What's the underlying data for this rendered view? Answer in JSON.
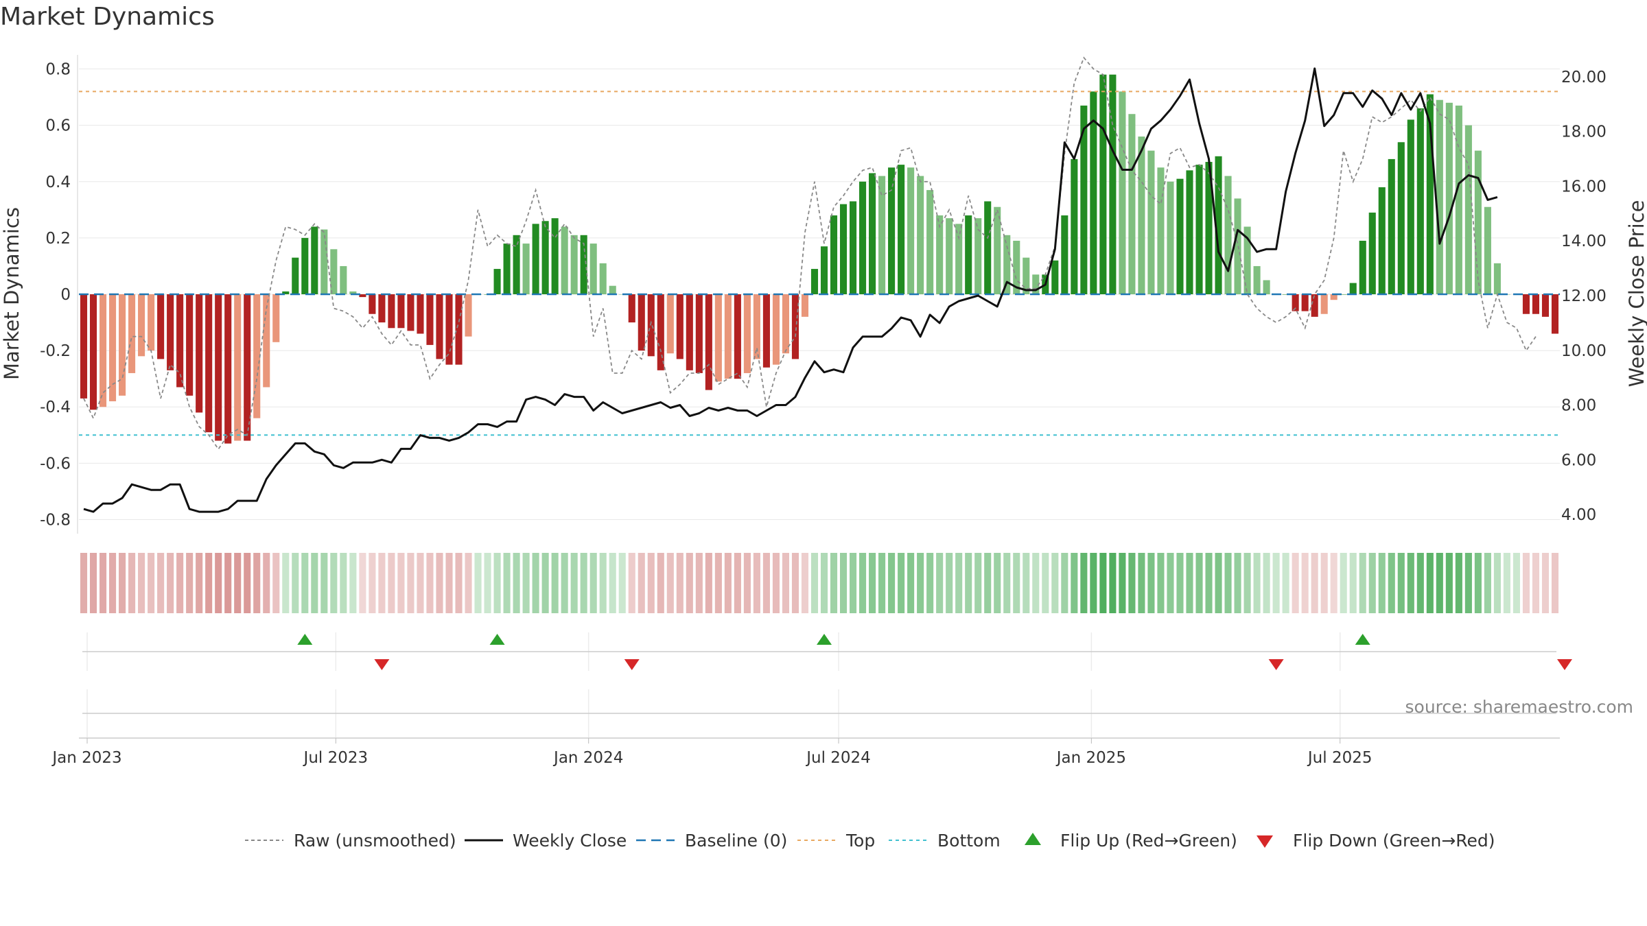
{
  "chart_data": {
    "type": "bar",
    "title": "Market Dynamics",
    "ylabel": "Market Dynamics",
    "y2label": "Weekly Close Price",
    "ylim": [
      -0.85,
      0.85
    ],
    "y2lim": [
      3.3,
      20.8
    ],
    "yticks": [
      "0.8",
      "0.6",
      "0.4",
      "0.2",
      "0",
      "-0.2",
      "-0.4",
      "-0.6",
      "-0.8"
    ],
    "y2ticks": [
      "20.00",
      "18.00",
      "16.00",
      "14.00",
      "12.00",
      "10.00",
      "8.00",
      "6.00",
      "4.00"
    ],
    "xticks": [
      "Jan 2023",
      "Jul 2023",
      "Jan 2024",
      "Jul 2024",
      "Jan 2025",
      "Jul 2025"
    ],
    "top_level": 0.72,
    "bottom_level": -0.5,
    "start_date": "2022-12-26",
    "weekly_bars": [
      -0.37,
      -0.41,
      -0.4,
      -0.38,
      -0.36,
      -0.28,
      -0.22,
      -0.2,
      -0.23,
      -0.27,
      -0.33,
      -0.36,
      -0.42,
      -0.49,
      -0.52,
      -0.53,
      -0.52,
      -0.52,
      -0.44,
      -0.33,
      -0.17,
      0.01,
      0.13,
      0.2,
      0.24,
      0.23,
      0.16,
      0.1,
      0.01,
      -0.01,
      -0.07,
      -0.1,
      -0.12,
      -0.12,
      -0.13,
      -0.14,
      -0.18,
      -0.23,
      -0.25,
      -0.25,
      -0.15,
      0.0,
      0.0,
      0.09,
      0.18,
      0.21,
      0.18,
      0.25,
      0.26,
      0.27,
      0.24,
      0.21,
      0.21,
      0.18,
      0.11,
      0.03,
      0.0,
      -0.1,
      -0.2,
      -0.22,
      -0.27,
      -0.21,
      -0.23,
      -0.27,
      -0.28,
      -0.34,
      -0.31,
      -0.3,
      -0.3,
      -0.28,
      -0.23,
      -0.26,
      -0.25,
      -0.21,
      -0.23,
      -0.08,
      0.09,
      0.17,
      0.28,
      0.32,
      0.33,
      0.4,
      0.43,
      0.42,
      0.45,
      0.46,
      0.45,
      0.42,
      0.37,
      0.28,
      0.27,
      0.25,
      0.28,
      0.27,
      0.33,
      0.31,
      0.21,
      0.19,
      0.13,
      0.07,
      0.07,
      0.12,
      0.28,
      0.48,
      0.67,
      0.72,
      0.78,
      0.78,
      0.72,
      0.64,
      0.56,
      0.51,
      0.45,
      0.4,
      0.41,
      0.44,
      0.46,
      0.47,
      0.49,
      0.42,
      0.34,
      0.24,
      0.1,
      0.05,
      0.0,
      0.0,
      -0.06,
      -0.06,
      -0.08,
      -0.07,
      -0.02,
      0.0,
      0.04,
      0.19,
      0.29,
      0.38,
      0.48,
      0.54,
      0.62,
      0.66,
      0.71,
      0.69,
      0.68,
      0.67,
      0.6,
      0.51,
      0.31,
      0.11,
      0.0,
      0.0,
      -0.07,
      -0.07,
      -0.08,
      -0.14
    ],
    "raw_unsmoothed": [
      -0.37,
      -0.44,
      -0.35,
      -0.32,
      -0.3,
      -0.15,
      -0.15,
      -0.2,
      -0.37,
      -0.25,
      -0.28,
      -0.4,
      -0.47,
      -0.5,
      -0.55,
      -0.5,
      -0.48,
      -0.5,
      -0.3,
      -0.05,
      0.12,
      0.24,
      0.23,
      0.21,
      0.25,
      0.22,
      -0.05,
      -0.06,
      -0.08,
      -0.12,
      -0.08,
      -0.14,
      -0.18,
      -0.13,
      -0.18,
      -0.18,
      -0.3,
      -0.25,
      -0.21,
      -0.1,
      0.05,
      0.3,
      0.17,
      0.21,
      0.18,
      0.17,
      0.26,
      0.37,
      0.24,
      0.2,
      0.25,
      0.2,
      0.18,
      -0.15,
      -0.05,
      -0.28,
      -0.28,
      -0.2,
      -0.23,
      -0.1,
      -0.2,
      -0.35,
      -0.32,
      -0.28,
      -0.28,
      -0.25,
      -0.32,
      -0.3,
      -0.28,
      -0.33,
      -0.19,
      -0.4,
      -0.28,
      -0.2,
      -0.15,
      0.22,
      0.4,
      0.18,
      0.31,
      0.35,
      0.4,
      0.44,
      0.45,
      0.35,
      0.37,
      0.51,
      0.52,
      0.4,
      0.4,
      0.24,
      0.3,
      0.2,
      0.35,
      0.23,
      0.2,
      0.3,
      0.17,
      0.05,
      0.02,
      0.02,
      0.07,
      0.17,
      0.5,
      0.75,
      0.84,
      0.8,
      0.78,
      0.6,
      0.52,
      0.44,
      0.4,
      0.35,
      0.32,
      0.5,
      0.52,
      0.45,
      0.46,
      0.43,
      0.38,
      0.3,
      0.18,
      0.0,
      -0.05,
      -0.08,
      -0.1,
      -0.08,
      -0.05,
      -0.12,
      0.0,
      0.05,
      0.2,
      0.51,
      0.4,
      0.48,
      0.63,
      0.61,
      0.63,
      0.66,
      0.69,
      0.65,
      0.7,
      0.64,
      0.62,
      0.52,
      0.46,
      0.05,
      -0.12,
      0.0,
      -0.1,
      -0.12,
      -0.2,
      -0.15
    ],
    "weekly_close": [
      4.2,
      4.1,
      4.4,
      4.4,
      4.6,
      5.1,
      5.0,
      4.9,
      4.9,
      5.1,
      5.1,
      4.2,
      4.1,
      4.1,
      4.1,
      4.2,
      4.5,
      4.5,
      4.5,
      5.3,
      5.8,
      6.2,
      6.6,
      6.6,
      6.3,
      6.2,
      5.8,
      5.7,
      5.9,
      5.9,
      5.9,
      6.0,
      5.9,
      6.4,
      6.4,
      6.9,
      6.8,
      6.8,
      6.7,
      6.8,
      7.0,
      7.3,
      7.3,
      7.2,
      7.4,
      7.4,
      8.2,
      8.3,
      8.2,
      8.0,
      8.4,
      8.3,
      8.3,
      7.8,
      8.1,
      7.9,
      7.7,
      7.8,
      7.9,
      8.0,
      8.1,
      7.9,
      8.0,
      7.6,
      7.7,
      7.9,
      7.8,
      7.9,
      7.8,
      7.8,
      7.6,
      7.8,
      8.0,
      8.0,
      8.3,
      9.0,
      9.6,
      9.2,
      9.3,
      9.2,
      10.1,
      10.5,
      10.5,
      10.5,
      10.8,
      11.2,
      11.1,
      10.5,
      11.3,
      11.0,
      11.6,
      11.8,
      11.9,
      12.0,
      11.8,
      11.6,
      12.5,
      12.3,
      12.2,
      12.2,
      12.4,
      13.7,
      17.6,
      17.0,
      18.1,
      18.4,
      18.1,
      17.3,
      16.6,
      16.6,
      17.3,
      18.1,
      18.4,
      18.8,
      19.3,
      19.9,
      18.3,
      17.0,
      13.6,
      12.9,
      14.4,
      14.1,
      13.6,
      13.7,
      13.7,
      15.8,
      17.2,
      18.4,
      20.3,
      18.2,
      18.6,
      19.4,
      19.4,
      18.9,
      19.5,
      19.2,
      18.6,
      19.4,
      18.8,
      19.4,
      18.3,
      13.9,
      14.9,
      16.1,
      16.4,
      16.3,
      15.5,
      15.6
    ],
    "legend": {
      "raw": "Raw (unsmoothed)",
      "close": "Weekly Close",
      "baseline": "Baseline (0)",
      "top": "Top",
      "bottom": "Bottom",
      "flip_up": "Flip Up (Red→Green)",
      "flip_down": "Flip Down (Green→Red)"
    },
    "flip_up_weeks": [
      23,
      43,
      77,
      133
    ],
    "flip_down_weeks": [
      31,
      57,
      124,
      154
    ],
    "colors": {
      "bull_strong": "#228b22",
      "bull_weak": "#7fbf7f",
      "bear_strong": "#b22222",
      "bear_weak": "#e9967a",
      "close_line": "#111111",
      "raw_line": "#888888",
      "baseline": "#1f77b4",
      "top_line": "#e8a860",
      "bottom_line": "#40c0d0",
      "flip_up": "#2ca02c",
      "flip_down": "#d62728"
    }
  },
  "source": "source: sharemaestro.com"
}
